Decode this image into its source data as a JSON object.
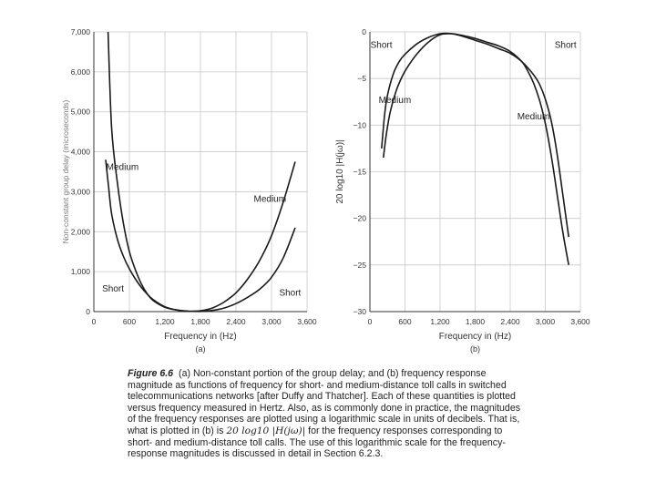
{
  "chart_data": [
    {
      "type": "line",
      "panel_label": "(a)",
      "xlabel": "Frequency in (Hz)",
      "ylabel": "Non-constant group delay (microseconds)",
      "xlim": [
        0,
        3600
      ],
      "ylim": [
        0,
        7000
      ],
      "xticks": [
        0,
        600,
        1200,
        1800,
        2400,
        3000,
        3600
      ],
      "xtick_labels": [
        "0",
        "600",
        "1,200",
        "1,800",
        "2,400",
        "3,000",
        "3,600"
      ],
      "yticks": [
        0,
        1000,
        2000,
        3000,
        4000,
        5000,
        6000,
        7000
      ],
      "ytick_labels": [
        "0",
        "1,000",
        "2,000",
        "3,000",
        "4,000",
        "5,000",
        "6,000",
        "7,000"
      ],
      "grid": true,
      "series": [
        {
          "name": "Short",
          "x": [
            240,
            300,
            400,
            500,
            600,
            700,
            800,
            900,
            1000,
            1200,
            1400,
            1600,
            1800,
            2000,
            2200,
            2400,
            2600,
            2800,
            3000,
            3200,
            3400
          ],
          "y": [
            7000,
            4600,
            3200,
            2200,
            1500,
            1050,
            700,
            450,
            280,
            110,
            40,
            10,
            5,
            30,
            90,
            200,
            360,
            560,
            860,
            1350,
            2100
          ]
        },
        {
          "name": "Medium",
          "x": [
            200,
            250,
            300,
            400,
            500,
            600,
            700,
            800,
            900,
            1000,
            1200,
            1400,
            1600,
            1800,
            2000,
            2200,
            2400,
            2600,
            2800,
            3000,
            3200,
            3400
          ],
          "y": [
            3800,
            3100,
            2450,
            1800,
            1380,
            1070,
            820,
            610,
            440,
            300,
            120,
            40,
            10,
            20,
            90,
            240,
            470,
            820,
            1280,
            1900,
            2750,
            3750
          ]
        }
      ],
      "annotations": [
        {
          "text": "Medium",
          "x": 210,
          "y": 3550
        },
        {
          "text": "Short",
          "x": 140,
          "y": 500
        },
        {
          "text": "Medium",
          "x": 2700,
          "y": 2750
        },
        {
          "text": "Short",
          "x": 3130,
          "y": 400
        }
      ]
    },
    {
      "type": "line",
      "panel_label": "(b)",
      "xlabel": "Frequency in (Hz)",
      "ylabel": "20 log10 |H(jω)|",
      "xlim": [
        0,
        3600
      ],
      "ylim": [
        -30,
        0
      ],
      "xticks": [
        0,
        600,
        1200,
        1800,
        2400,
        3000,
        3600
      ],
      "xtick_labels": [
        "0",
        "600",
        "1,200",
        "1,800",
        "2,400",
        "3,000",
        "3,600"
      ],
      "yticks": [
        0,
        -5,
        -10,
        -15,
        -20,
        -25,
        -30
      ],
      "ytick_labels": [
        "0",
        "−5",
        "−10",
        "−15",
        "−20",
        "−25",
        "−30"
      ],
      "grid": true,
      "series": [
        {
          "name": "Short",
          "x": [
            200,
            250,
            300,
            400,
            500,
            600,
            800,
            1000,
            1200,
            1400,
            1600,
            1800,
            2000,
            2200,
            2400,
            2600,
            2800,
            2900,
            3000,
            3100,
            3200,
            3300,
            3400
          ],
          "y": [
            -12.5,
            -9,
            -6.8,
            -4.5,
            -3.2,
            -2.4,
            -1.3,
            -0.6,
            -0.2,
            -0.2,
            -0.5,
            -0.9,
            -1.3,
            -1.8,
            -2.3,
            -3.2,
            -4.6,
            -5.6,
            -7.2,
            -9.5,
            -13,
            -17.5,
            -22
          ]
        },
        {
          "name": "Medium",
          "x": [
            230,
            280,
            350,
            450,
            550,
            650,
            800,
            1000,
            1200,
            1400,
            1600,
            1800,
            2000,
            2200,
            2400,
            2600,
            2700,
            2800,
            2900,
            3000,
            3100,
            3200,
            3300,
            3400
          ],
          "y": [
            -13.5,
            -11,
            -8.5,
            -6.3,
            -4.8,
            -3.7,
            -2.4,
            -1.1,
            -0.3,
            -0.2,
            -0.4,
            -0.7,
            -1.1,
            -1.5,
            -2.1,
            -3.2,
            -4.2,
            -5.5,
            -7.3,
            -9.8,
            -13.2,
            -17.3,
            -21.5,
            -25
          ]
        }
      ],
      "annotations": [
        {
          "text": "Short",
          "x": 10,
          "y": -1.7
        },
        {
          "text": "Short",
          "x": 3160,
          "y": -1.7
        },
        {
          "text": "Medium",
          "x": 150,
          "y": -7.6
        },
        {
          "text": "Medium",
          "x": 2520,
          "y": -9.4
        }
      ]
    }
  ],
  "caption": {
    "figure_label": "Figure 6.6",
    "text_before_math": "(a) Non-constant portion of the group delay; and (b) frequency response magnitude as functions of frequency for short- and medium-distance toll calls in switched telecommunications networks [after Duffy and Thatcher]. Each of these quantities is plotted versus frequency measured in Hertz. Also, as is commonly done in practice, the magnitudes of the frequency responses are plotted using a logarithmic scale in units of decibels. That is, what is plotted in (b) is",
    "math": "20 log10 |H(jω)|",
    "text_after_math": "for the frequency responses corresponding to short- and medium-distance toll calls. The use of this logarithmic scale for the frequency-response magnitudes is discussed in detail in Section 6.2.3."
  }
}
